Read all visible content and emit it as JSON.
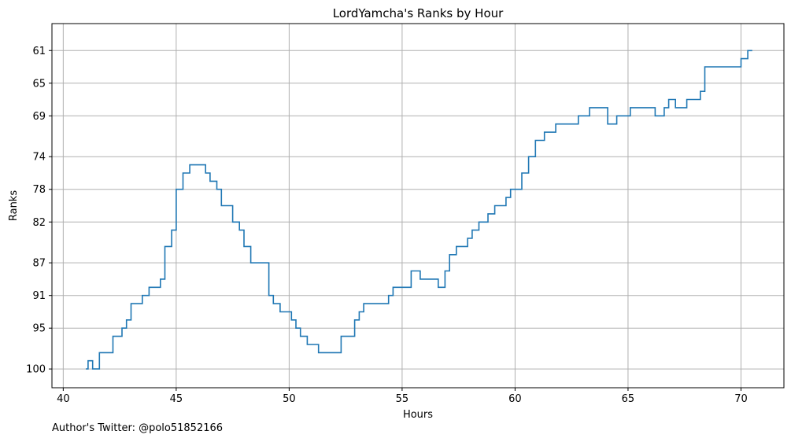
{
  "chart_data": {
    "type": "line",
    "step": "post",
    "title": "LordYamcha's Ranks by Hour",
    "xlabel": "Hours",
    "ylabel": "Ranks",
    "xlim": [
      39.5,
      71.9
    ],
    "ylim": [
      102.3,
      57.7
    ],
    "y_inverted": true,
    "grid": true,
    "x_ticks": [
      40,
      45,
      50,
      55,
      60,
      65,
      70
    ],
    "y_ticks": [
      61,
      65,
      69,
      74,
      78,
      82,
      87,
      91,
      95,
      100
    ],
    "series": [
      {
        "color": "#1f77b4",
        "x": [
          41.0,
          41.1,
          41.3,
          41.6,
          42.2,
          42.6,
          42.8,
          43.0,
          43.5,
          43.8,
          44.3,
          44.5,
          44.8,
          45.0,
          45.3,
          45.6,
          46.3,
          46.5,
          46.8,
          47.0,
          47.5,
          47.8,
          48.0,
          48.3,
          49.1,
          49.3,
          49.6,
          50.1,
          50.3,
          50.5,
          50.8,
          51.3,
          52.3,
          52.9,
          53.1,
          53.3,
          54.4,
          54.6,
          55.4,
          55.8,
          56.6,
          56.9,
          57.1,
          57.4,
          57.9,
          58.1,
          58.4,
          58.8,
          59.1,
          59.6,
          59.8,
          60.3,
          60.6,
          60.9,
          61.3,
          61.8,
          62.8,
          63.3,
          64.1,
          64.5,
          65.1,
          66.2,
          66.6,
          66.8,
          67.1,
          67.6,
          68.2,
          68.4,
          70.0,
          70.3,
          70.5
        ],
        "y": [
          100,
          99,
          100,
          98,
          96,
          95,
          94,
          92,
          91,
          90,
          89,
          85,
          83,
          78,
          76,
          75,
          76,
          77,
          78,
          80,
          82,
          83,
          85,
          87,
          91,
          92,
          93,
          94,
          95,
          96,
          97,
          98,
          96,
          94,
          93,
          92,
          91,
          90,
          88,
          89,
          90,
          88,
          86,
          85,
          84,
          83,
          82,
          81,
          80,
          79,
          78,
          76,
          74,
          72,
          71,
          70,
          69,
          68,
          70,
          69,
          68,
          69,
          68,
          67,
          68,
          67,
          66,
          63,
          62,
          61,
          61
        ]
      }
    ]
  },
  "footer": {
    "credit": "Author's Twitter: @polo51852166"
  }
}
